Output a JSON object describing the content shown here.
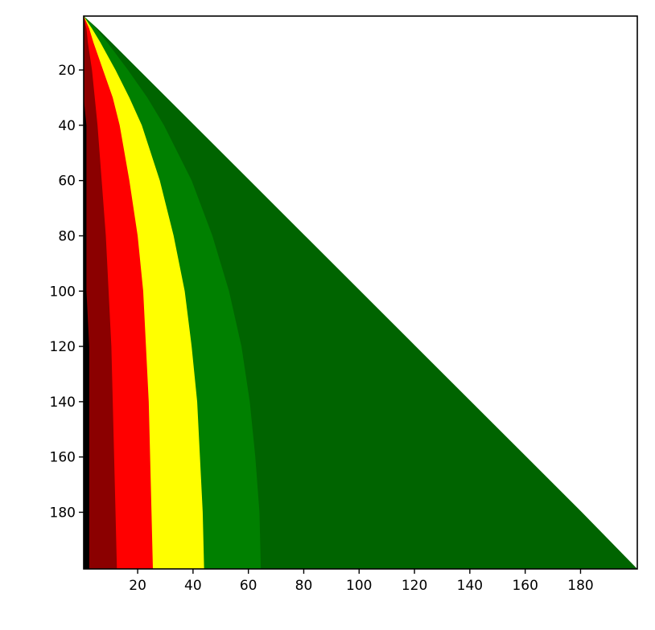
{
  "chart_data": {
    "type": "area",
    "rows": [
      0.5,
      5,
      10,
      20,
      30,
      40,
      60,
      80,
      100,
      120,
      140,
      160,
      180,
      200.5
    ],
    "series": [
      {
        "color": "#000000",
        "values": [
          0.5,
          0.5,
          0.5,
          0.5,
          0.5,
          1.5,
          1.5,
          1.5,
          1.5,
          2.5,
          2.5,
          2.5,
          2.5,
          2.5
        ]
      },
      {
        "color": "#8b0000",
        "values": [
          0.5,
          1.5,
          2,
          3.5,
          4.5,
          5.5,
          7,
          8.5,
          9.5,
          10.5,
          11,
          11.5,
          12,
          12.5
        ]
      },
      {
        "color": "#ff0000",
        "values": [
          0.5,
          2.5,
          4,
          7.5,
          11,
          13.5,
          17,
          20,
          22,
          23,
          24,
          24.5,
          25,
          25.5
        ]
      },
      {
        "color": "#ffff00",
        "values": [
          0.5,
          3.5,
          6.5,
          12,
          17,
          21.5,
          28,
          33,
          37,
          39.5,
          41.5,
          42.5,
          43.5,
          44
        ]
      },
      {
        "color": "#008000",
        "values": [
          0.5,
          5,
          9,
          16.5,
          23.5,
          29.5,
          39.5,
          47,
          53,
          57.5,
          60.5,
          62.5,
          64,
          64.5
        ]
      },
      {
        "color": "#006400",
        "values": [
          0.5,
          5.5,
          10.5,
          20.5,
          30.5,
          40.5,
          60.5,
          80.5,
          100.5,
          120.5,
          140.5,
          160.5,
          180.5,
          200.5
        ]
      }
    ],
    "xlim": [
      0.5,
      200.5
    ],
    "ylim": [
      0.5,
      200.5
    ],
    "y_inverted": true,
    "xticks": [
      20,
      40,
      60,
      80,
      100,
      120,
      140,
      160,
      180
    ],
    "yticks": [
      20,
      40,
      60,
      80,
      100,
      120,
      140,
      160,
      180
    ]
  }
}
